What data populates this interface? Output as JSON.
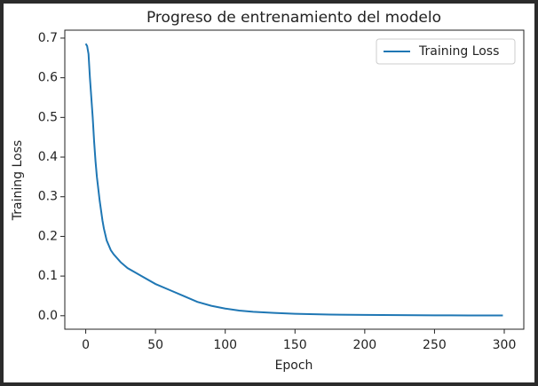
{
  "chart_data": {
    "type": "line",
    "title": "Progreso de entrenamiento del modelo",
    "x_label": "Epoch",
    "y_label": "Training Loss",
    "x": [
      0,
      1,
      2,
      3,
      4,
      5,
      6,
      7,
      8,
      10,
      12,
      13,
      15,
      18,
      20,
      25,
      30,
      35,
      40,
      50,
      60,
      70,
      80,
      90,
      100,
      110,
      120,
      135,
      150,
      175,
      200,
      225,
      250,
      275,
      299
    ],
    "series": [
      {
        "name": "Training Loss",
        "color": "#1f77b4",
        "values": [
          0.686,
          0.68,
          0.66,
          0.6,
          0.55,
          0.5,
          0.44,
          0.39,
          0.35,
          0.29,
          0.24,
          0.22,
          0.19,
          0.165,
          0.155,
          0.135,
          0.12,
          0.11,
          0.1,
          0.08,
          0.065,
          0.05,
          0.035,
          0.025,
          0.018,
          0.013,
          0.01,
          0.007,
          0.005,
          0.003,
          0.002,
          0.0015,
          0.001,
          0.0008,
          0.0007
        ]
      }
    ],
    "xlim": [
      -15,
      314
    ],
    "ylim": [
      -0.034,
      0.72
    ],
    "xticks": [
      0,
      50,
      100,
      150,
      200,
      250,
      300
    ],
    "yticks": [
      {
        "value": 0,
        "label": "0.0"
      },
      0.1,
      0.2,
      0.3,
      0.4,
      0.5,
      0.6,
      0.7
    ],
    "legend": "upper right"
  }
}
